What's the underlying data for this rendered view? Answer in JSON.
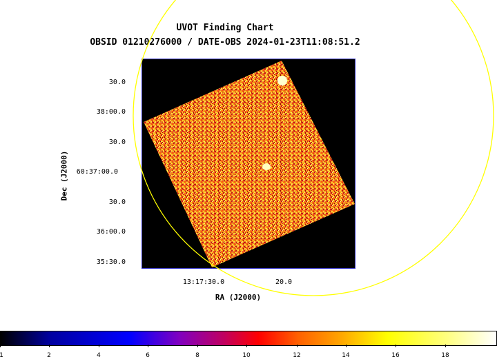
{
  "header": {
    "title": "UVOT Finding Chart",
    "subtitle": "OBSID 01210276000 / DATE-OBS 2024-01-23T11:08:51.2"
  },
  "axes": {
    "ylabel": "Dec (J2000)",
    "xlabel": "RA (J2000)",
    "yticks": [
      "30.0",
      "38:00.0",
      "30.0",
      "60:37:00.0",
      "30.0",
      "36:00.0",
      "35:30.0"
    ],
    "xticks": [
      "13:17:30.0",
      "20.0"
    ]
  },
  "colorbar": {
    "labels": [
      "1",
      "2",
      "4",
      "6",
      "8",
      "10",
      "12",
      "14",
      "16",
      "18"
    ],
    "colors": [
      "#000000",
      "#0000ff",
      "#c00060",
      "#ff0000",
      "#ffa000",
      "#ffff00",
      "#ffffff"
    ]
  },
  "overlay": {
    "circle_color": "#ffff00",
    "frame_color": "#3030c8"
  }
}
